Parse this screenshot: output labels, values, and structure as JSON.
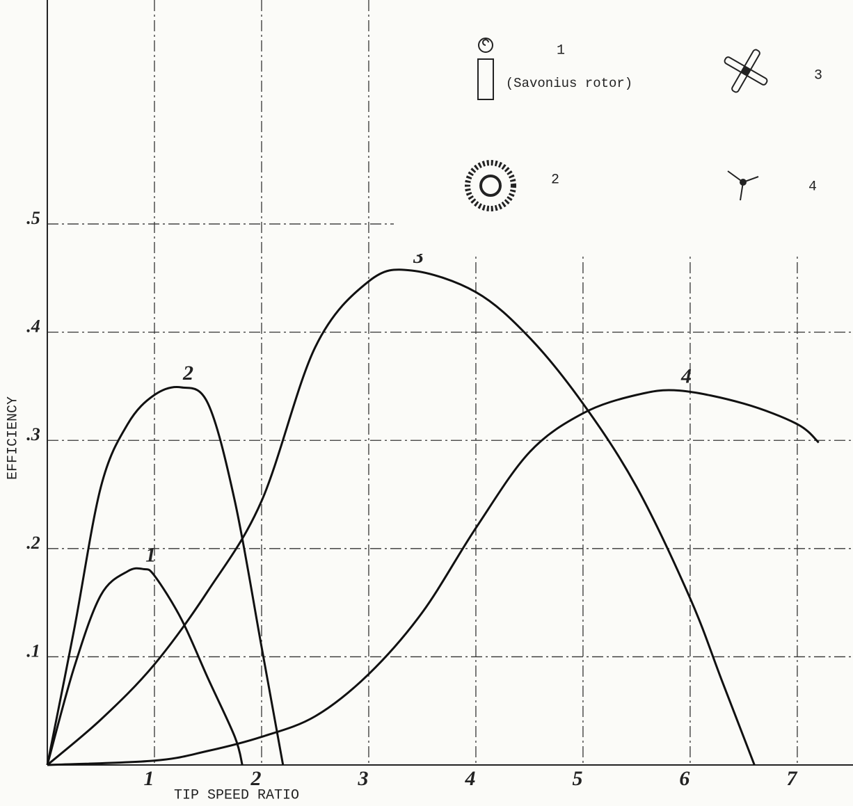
{
  "chart_data": {
    "type": "line",
    "x_label": "TIP SPEED RATIO",
    "y_label": "EFFICIENCY",
    "xlim": [
      0,
      7.52
    ],
    "ylim": [
      0,
      0.707
    ],
    "xticks": [
      1,
      2,
      3,
      4,
      5,
      6,
      7
    ],
    "yticks": [
      {
        "value": 0.1,
        "label": ".1"
      },
      {
        "value": 0.2,
        "label": ".2"
      },
      {
        "value": 0.3,
        "label": ".3"
      },
      {
        "value": 0.4,
        "label": ".4"
      },
      {
        "value": 0.5,
        "label": ".5"
      }
    ],
    "grid": true,
    "series": [
      {
        "name": "1",
        "description": "(Savonius rotor)",
        "color": "#111111",
        "x": [
          0,
          0.25,
          0.5,
          0.75,
          0.9,
          1.0,
          1.25,
          1.5,
          1.75,
          1.82
        ],
        "values": [
          0,
          0.09,
          0.157,
          0.179,
          0.181,
          0.175,
          0.135,
          0.08,
          0.026,
          0
        ]
      },
      {
        "name": "2",
        "color": "#111111",
        "x": [
          0,
          0.25,
          0.5,
          0.75,
          1.0,
          1.25,
          1.5,
          1.75,
          2.0,
          2.2
        ],
        "values": [
          0,
          0.125,
          0.257,
          0.315,
          0.342,
          0.349,
          0.334,
          0.244,
          0.109,
          0
        ]
      },
      {
        "name": "3",
        "color": "#111111",
        "x": [
          0,
          0.5,
          1.0,
          1.5,
          2.0,
          2.5,
          3.0,
          3.4,
          4.0,
          4.5,
          5.0,
          5.5,
          6.0,
          6.3,
          6.6
        ],
        "values": [
          0,
          0.042,
          0.093,
          0.161,
          0.244,
          0.386,
          0.447,
          0.457,
          0.437,
          0.395,
          0.334,
          0.257,
          0.154,
          0.077,
          0
        ]
      },
      {
        "name": "4",
        "color": "#111111",
        "x": [
          0,
          1.0,
          1.5,
          2.0,
          2.5,
          3.0,
          3.5,
          4.0,
          4.5,
          5.0,
          5.5,
          5.9,
          6.5,
          7.0,
          7.2
        ],
        "values": [
          0,
          0.004,
          0.013,
          0.026,
          0.045,
          0.084,
          0.141,
          0.219,
          0.289,
          0.325,
          0.342,
          0.346,
          0.334,
          0.315,
          0.298
        ]
      }
    ]
  }
}
